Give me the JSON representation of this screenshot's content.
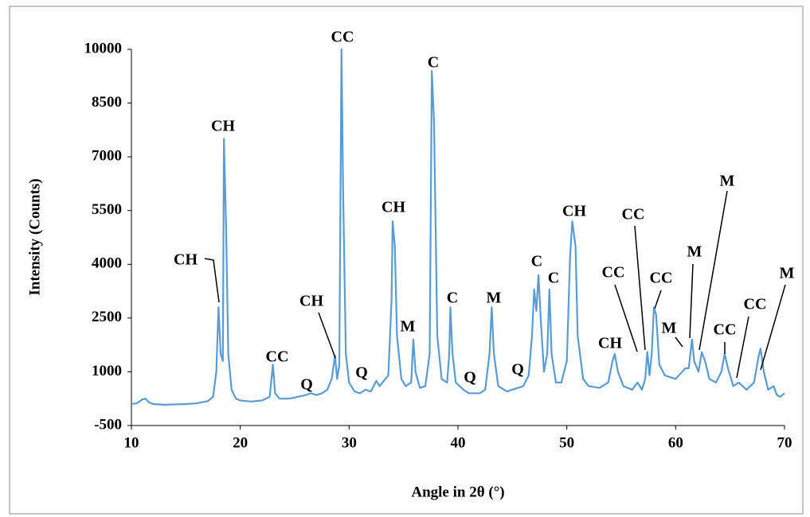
{
  "chart_data": {
    "type": "line",
    "xlabel": "Angle in 2θ (°)",
    "ylabel": "Intensity (Counts)",
    "xlim": [
      10,
      70
    ],
    "xticks": [
      10,
      20,
      30,
      40,
      50,
      60,
      70
    ],
    "ylim": [
      -500,
      10000
    ],
    "yticks": [
      -500,
      1000,
      2500,
      4000,
      5500,
      7000,
      8500,
      10000
    ],
    "grid": false,
    "series": [
      {
        "color": "#5b9bd5",
        "x": [
          10.0,
          10.5,
          11.0,
          11.3,
          11.6,
          12,
          13,
          14,
          15,
          16,
          17,
          17.5,
          17.8,
          18.0,
          18.2,
          18.4,
          18.5,
          18.7,
          18.9,
          19.2,
          19.6,
          20,
          21,
          22,
          22.7,
          23.0,
          23.2,
          23.6,
          24.5,
          25,
          26,
          26.5,
          27,
          27.5,
          28,
          28.4,
          28.7,
          28.9,
          29.1,
          29.3,
          29.45,
          29.7,
          30,
          30.5,
          31,
          31.5,
          32,
          32.5,
          32.8,
          33.2,
          33.6,
          33.9,
          34.0,
          34.2,
          34.4,
          34.8,
          35.2,
          35.7,
          35.9,
          36.1,
          36.5,
          37,
          37.4,
          37.6,
          37.8,
          38.1,
          38.5,
          39,
          39.2,
          39.3,
          39.5,
          39.8,
          40.5,
          41,
          42,
          42.5,
          42.9,
          43.1,
          43.3,
          43.7,
          44.5,
          45.5,
          46,
          46.5,
          46.8,
          47.0,
          47.2,
          47.4,
          47.6,
          47.9,
          48.2,
          48.4,
          48.6,
          49,
          49.5,
          50,
          50.3,
          50.5,
          50.8,
          51,
          51.5,
          52,
          53,
          53.8,
          54.2,
          54.4,
          54.7,
          55.2,
          56,
          56.5,
          56.9,
          57.2,
          57.4,
          57.6,
          57.8,
          58.0,
          58.2,
          58.5,
          59,
          60,
          60.6,
          60.9,
          61.2,
          61.5,
          61.7,
          62.1,
          62.4,
          62.7,
          63.1,
          63.7,
          64.2,
          64.5,
          64.8,
          65.3,
          65.8,
          66.5,
          67.2,
          67.6,
          67.8,
          68.1,
          68.5,
          69,
          69.3,
          69.6,
          70
        ],
        "values": [
          100,
          120,
          230,
          250,
          150,
          100,
          80,
          90,
          100,
          120,
          180,
          300,
          1000,
          2800,
          1500,
          1300,
          7500,
          5000,
          1500,
          500,
          250,
          200,
          170,
          200,
          300,
          1200,
          400,
          250,
          250,
          280,
          350,
          400,
          350,
          400,
          500,
          800,
          1450,
          800,
          1200,
          10000,
          6000,
          1500,
          700,
          450,
          400,
          500,
          450,
          750,
          600,
          750,
          900,
          3000,
          5200,
          4500,
          2000,
          800,
          600,
          700,
          1900,
          1000,
          550,
          600,
          1500,
          9400,
          8000,
          2000,
          800,
          700,
          1500,
          2800,
          1500,
          700,
          500,
          400,
          400,
          500,
          1500,
          2800,
          1500,
          600,
          450,
          550,
          600,
          900,
          2000,
          3300,
          2700,
          3700,
          2500,
          1000,
          1500,
          3300,
          1500,
          700,
          700,
          1300,
          4200,
          5200,
          4500,
          2000,
          800,
          600,
          550,
          700,
          1300,
          1500,
          1000,
          600,
          500,
          700,
          500,
          800,
          1550,
          900,
          1500,
          2800,
          2600,
          1200,
          900,
          800,
          1000,
          1100,
          1100,
          1900,
          1300,
          1000,
          1550,
          1300,
          800,
          700,
          1000,
          1500,
          1100,
          600,
          700,
          500,
          700,
          1400,
          1650,
          1000,
          500,
          600,
          350,
          300,
          400
        ]
      }
    ],
    "annotations": [
      "CH",
      "CH",
      "CC",
      "Q",
      "CH",
      "CC",
      "Q",
      "CH",
      "M",
      "C",
      "C",
      "Q",
      "M",
      "Q",
      "C",
      "C",
      "CH",
      "CC",
      "CH",
      "CC",
      "CC",
      "M",
      "M",
      "M",
      "CC",
      "CC",
      "M"
    ]
  }
}
